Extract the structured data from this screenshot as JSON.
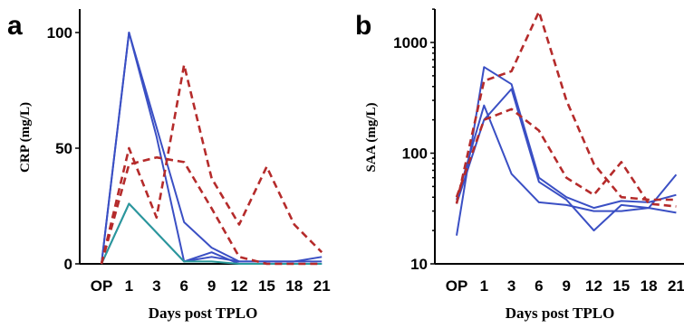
{
  "chart_data": [
    {
      "panel": "a",
      "type": "line",
      "ylabel": "CRP (mg/L)",
      "xlabel": "Days post TPLO",
      "y_scale": "linear",
      "ylim": [
        0,
        105
      ],
      "y_ticks": [
        0,
        50,
        100
      ],
      "y_tick_labels": [
        "0",
        "50",
        "100"
      ],
      "x_categories": [
        "OP",
        "1",
        "3",
        "6",
        "9",
        "12",
        "15",
        "18",
        "21"
      ],
      "grid": false,
      "legend": "none",
      "series": [
        {
          "color": "#3a4fc4",
          "style": "solid",
          "points": [
            [
              0,
              0
            ],
            [
              1,
              100
            ],
            [
              2,
              55
            ],
            [
              3,
              1
            ],
            [
              4,
              3
            ],
            [
              5,
              1
            ],
            [
              6,
              1
            ],
            [
              7,
              1
            ],
            [
              8,
              1
            ]
          ]
        },
        {
          "color": "#3a4fc4",
          "style": "solid",
          "points": [
            [
              0,
              0
            ],
            [
              1,
              100
            ],
            [
              3,
              18
            ],
            [
              4,
              7
            ],
            [
              5,
              1
            ],
            [
              6,
              1
            ],
            [
              7,
              1
            ],
            [
              8,
              3
            ]
          ]
        },
        {
          "color": "#3a4fc4",
          "style": "solid",
          "points": [
            [
              0,
              0
            ],
            [
              1,
              26
            ],
            [
              3,
              1
            ],
            [
              4,
              5
            ],
            [
              5,
              0
            ],
            [
              6,
              0
            ],
            [
              7,
              0
            ],
            [
              8,
              0
            ]
          ]
        },
        {
          "color": "#2a9a9a",
          "style": "solid",
          "points": [
            [
              0,
              0
            ],
            [
              1,
              26
            ],
            [
              3,
              1
            ],
            [
              4,
              1
            ],
            [
              5,
              0
            ],
            [
              6,
              0
            ],
            [
              7,
              0
            ],
            [
              8,
              0
            ]
          ]
        },
        {
          "color": "#b52b2b",
          "style": "dashed",
          "points": [
            [
              0,
              0
            ],
            [
              1,
              50
            ],
            [
              2,
              20
            ],
            [
              3,
              86
            ],
            [
              4,
              37
            ],
            [
              5,
              17
            ],
            [
              6,
              42
            ],
            [
              7,
              17
            ],
            [
              8,
              5
            ]
          ]
        },
        {
          "color": "#b52b2b",
          "style": "dashed",
          "points": [
            [
              0,
              0
            ],
            [
              1,
              43
            ],
            [
              2,
              46
            ],
            [
              3,
              44
            ],
            [
              4,
              24
            ],
            [
              5,
              3
            ],
            [
              6,
              0
            ],
            [
              7,
              0
            ],
            [
              8,
              0
            ]
          ]
        }
      ]
    },
    {
      "panel": "b",
      "type": "line",
      "ylabel": "SAA (mg/L)",
      "xlabel": "Days post TPLO",
      "y_scale": "log",
      "ylim": [
        10,
        2100
      ],
      "y_ticks": [
        10,
        100,
        1000
      ],
      "y_tick_labels": [
        "10",
        "100",
        "1000"
      ],
      "x_categories": [
        "OP",
        "1",
        "3",
        "6",
        "9",
        "12",
        "15",
        "18",
        "21"
      ],
      "grid": false,
      "legend": "none",
      "series": [
        {
          "color": "#3a4fc4",
          "style": "solid",
          "points": [
            [
              0,
              18
            ],
            [
              1,
              600
            ],
            [
              2,
              420
            ],
            [
              3,
              60
            ],
            [
              4,
              40
            ],
            [
              5,
              32
            ],
            [
              6,
              37
            ],
            [
              7,
              36
            ],
            [
              8,
              42
            ]
          ]
        },
        {
          "color": "#3a4fc4",
          "style": "solid",
          "points": [
            [
              0,
              35
            ],
            [
              1,
              200
            ],
            [
              2,
              380
            ],
            [
              3,
              55
            ],
            [
              4,
              38
            ],
            [
              5,
              20
            ],
            [
              6,
              34
            ],
            [
              7,
              32
            ],
            [
              8,
              64
            ]
          ]
        },
        {
          "color": "#3a4fc4",
          "style": "solid",
          "points": [
            [
              0,
              38
            ],
            [
              1,
              270
            ],
            [
              2,
              65
            ],
            [
              3,
              36
            ],
            [
              4,
              34
            ],
            [
              5,
              30
            ],
            [
              6,
              30
            ],
            [
              7,
              32
            ],
            [
              8,
              29
            ]
          ]
        },
        {
          "color": "#b52b2b",
          "style": "dashed",
          "points": [
            [
              0,
              35
            ],
            [
              1,
              450
            ],
            [
              2,
              550
            ],
            [
              3,
              1900
            ],
            [
              4,
              300
            ],
            [
              5,
              80
            ],
            [
              6,
              40
            ],
            [
              7,
              38
            ],
            [
              8,
              38
            ]
          ]
        },
        {
          "color": "#b52b2b",
          "style": "dashed",
          "points": [
            [
              0,
              40
            ],
            [
              1,
              200
            ],
            [
              2,
              250
            ],
            [
              3,
              160
            ],
            [
              4,
              60
            ],
            [
              5,
              42
            ],
            [
              6,
              83
            ],
            [
              7,
              35
            ],
            [
              8,
              33
            ]
          ]
        }
      ]
    }
  ]
}
